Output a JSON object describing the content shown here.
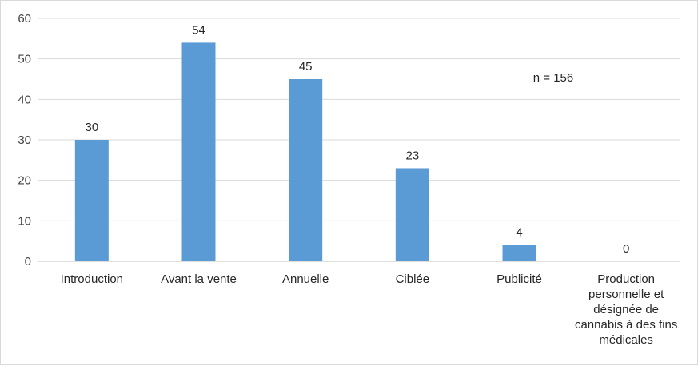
{
  "chart_data": {
    "type": "bar",
    "categories": [
      [
        "Introduction"
      ],
      [
        "Avant la vente"
      ],
      [
        "Annuelle"
      ],
      [
        "Ciblée"
      ],
      [
        "Publicité"
      ],
      [
        "Production",
        "personnelle et",
        "désignée de",
        "cannabis à des fins",
        "médicales"
      ]
    ],
    "values": [
      30,
      54,
      45,
      23,
      4,
      0
    ],
    "ylim": [
      0,
      60
    ],
    "yticks": [
      0,
      10,
      20,
      30,
      40,
      50,
      60
    ],
    "grid": true,
    "bar_color": "#5b9bd5",
    "annotation": "n = 156"
  }
}
